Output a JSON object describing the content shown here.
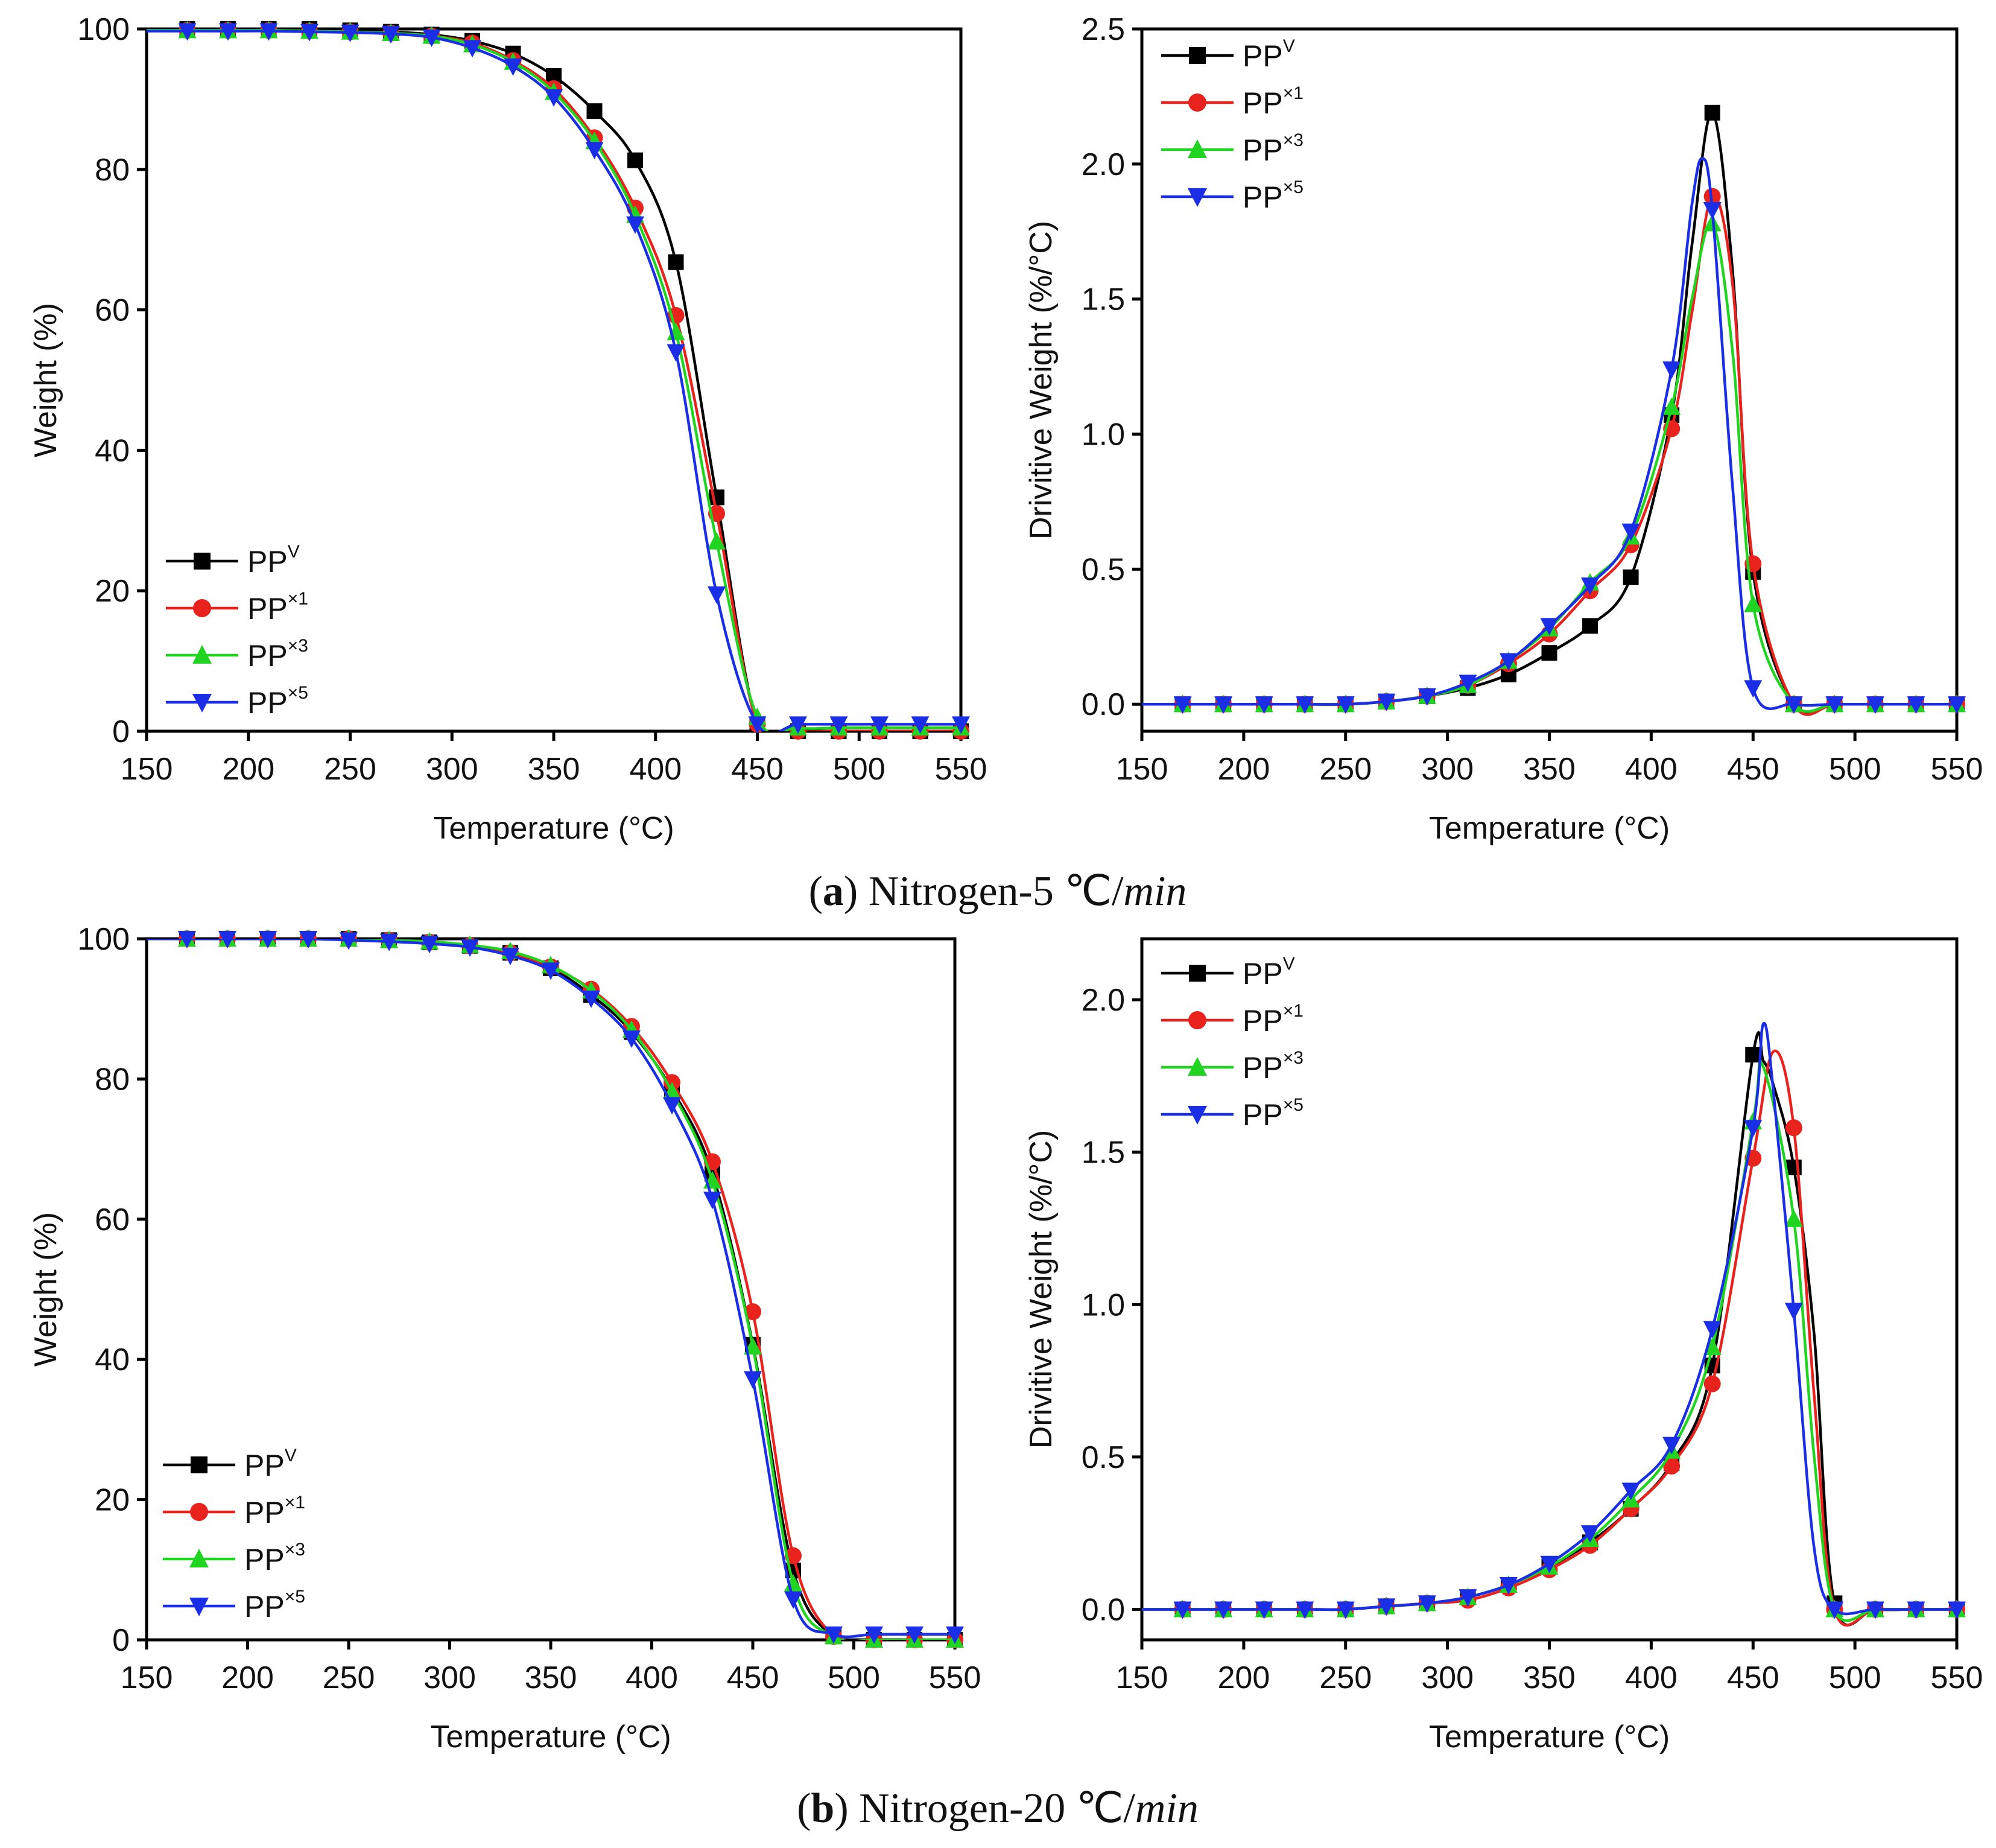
{
  "figure": {
    "captions": [
      {
        "label": "a",
        "text": " Nitrogen-5 ",
        "unit": "℃/",
        "rate": "min"
      },
      {
        "label": "b",
        "text": " Nitrogen-20 ",
        "unit": "℃/",
        "rate": "min"
      }
    ]
  },
  "chart_data": [
    {
      "id": "a-tga",
      "type": "line",
      "xlabel": "Temperature (°C)",
      "ylabel": "Weight (%)",
      "xlim": [
        150,
        550
      ],
      "ylim": [
        0,
        100
      ],
      "xticks": [
        "150",
        "200",
        "250",
        "300",
        "350",
        "400",
        "450",
        "500",
        "550"
      ],
      "yticks": [
        "0",
        "20",
        "40",
        "60",
        "80",
        "100"
      ],
      "legend": {
        "position": "bottom-left"
      },
      "series": [
        {
          "name": "PP",
          "sup": "V",
          "color": "#000000",
          "marker": "square",
          "x": [
            150,
            170,
            190,
            210,
            230,
            250,
            270,
            290,
            310,
            330,
            350,
            370,
            390,
            410,
            430,
            450,
            470,
            490,
            510,
            530,
            550
          ],
          "y": [
            100,
            100,
            100,
            100,
            100,
            99.8,
            99.6,
            99.2,
            98.3,
            96.5,
            93.3,
            88.3,
            81.3,
            66.8,
            33.3,
            1,
            0,
            0,
            0,
            0,
            0
          ]
        },
        {
          "name": "PP",
          "sup": "×1",
          "color": "#e8221c",
          "marker": "circle",
          "x": [
            150,
            170,
            190,
            210,
            230,
            250,
            270,
            290,
            310,
            330,
            350,
            370,
            390,
            410,
            430,
            450,
            470,
            490,
            510,
            530,
            550
          ],
          "y": [
            99.8,
            99.8,
            99.8,
            99.8,
            99.7,
            99.6,
            99.4,
            99.0,
            98.0,
            95.5,
            91.5,
            84.5,
            74.5,
            59.2,
            31.0,
            1,
            0,
            0,
            0,
            0,
            0
          ]
        },
        {
          "name": "PP",
          "sup": "×3",
          "color": "#22d422",
          "marker": "triangle-up",
          "x": [
            150,
            170,
            190,
            210,
            230,
            250,
            270,
            290,
            310,
            330,
            350,
            370,
            390,
            410,
            430,
            450,
            470,
            490,
            510,
            530,
            550
          ],
          "y": [
            99.8,
            99.8,
            99.8,
            99.8,
            99.7,
            99.6,
            99.4,
            99.0,
            97.8,
            95.3,
            91.0,
            84.0,
            73.5,
            56.8,
            27.0,
            2,
            0.5,
            0.5,
            0.5,
            0.5,
            0.5
          ]
        },
        {
          "name": "PP",
          "sup": "×5",
          "color": "#1a2ee6",
          "marker": "triangle-down",
          "x": [
            150,
            170,
            190,
            210,
            230,
            250,
            270,
            290,
            310,
            330,
            350,
            370,
            390,
            410,
            430,
            450,
            470,
            490,
            510,
            530,
            550
          ],
          "y": [
            99.7,
            99.7,
            99.7,
            99.7,
            99.6,
            99.5,
            99.3,
            98.8,
            97.3,
            94.7,
            90.3,
            82.8,
            72.2,
            54.0,
            19.5,
            1,
            1,
            1,
            1,
            1,
            1
          ]
        }
      ]
    },
    {
      "id": "a-dtg",
      "type": "line",
      "xlabel": "Temperature (°C)",
      "ylabel": "Drivitive Weight (%/°C)",
      "xlim": [
        150,
        550
      ],
      "ylim": [
        -0.1,
        2.5
      ],
      "xticks": [
        "150",
        "200",
        "250",
        "300",
        "350",
        "400",
        "450",
        "500",
        "550"
      ],
      "yticks": [
        "0.0",
        "0.5",
        "1.0",
        "1.5",
        "2.0",
        "2.5"
      ],
      "legend": {
        "position": "top-left"
      },
      "series": [
        {
          "name": "PP",
          "sup": "V",
          "color": "#000000",
          "marker": "square",
          "x": [
            150,
            170,
            190,
            210,
            230,
            250,
            270,
            290,
            310,
            330,
            350,
            370,
            390,
            410,
            420,
            430,
            440,
            450,
            470,
            490,
            510,
            530,
            550
          ],
          "y": [
            0,
            0,
            0,
            0,
            0,
            0,
            0.01,
            0.03,
            0.06,
            0.11,
            0.19,
            0.29,
            0.47,
            1.07,
            1.7,
            2.19,
            1.6,
            0.49,
            0,
            0,
            0,
            0,
            0
          ]
        },
        {
          "name": "PP",
          "sup": "×1",
          "color": "#e8221c",
          "marker": "circle",
          "x": [
            150,
            170,
            190,
            210,
            230,
            250,
            270,
            290,
            310,
            330,
            350,
            370,
            390,
            410,
            420,
            430,
            440,
            450,
            470,
            490,
            510,
            530,
            550
          ],
          "y": [
            0,
            0,
            0,
            0,
            0,
            0,
            0.01,
            0.03,
            0.07,
            0.15,
            0.26,
            0.42,
            0.59,
            1.02,
            1.45,
            1.88,
            1.55,
            0.52,
            0,
            0,
            0,
            0,
            0
          ]
        },
        {
          "name": "PP",
          "sup": "×3",
          "color": "#22d422",
          "marker": "triangle-up",
          "x": [
            150,
            170,
            190,
            210,
            230,
            250,
            270,
            290,
            310,
            330,
            350,
            370,
            390,
            410,
            420,
            430,
            440,
            450,
            470,
            490,
            510,
            530,
            550
          ],
          "y": [
            0,
            0,
            0,
            0,
            0,
            0,
            0.01,
            0.03,
            0.07,
            0.16,
            0.28,
            0.45,
            0.62,
            1.1,
            1.5,
            1.78,
            1.3,
            0.37,
            0,
            0,
            0,
            0,
            0
          ]
        },
        {
          "name": "PP",
          "sup": "×5",
          "color": "#1a2ee6",
          "marker": "triangle-down",
          "x": [
            150,
            170,
            190,
            210,
            230,
            250,
            270,
            290,
            310,
            330,
            350,
            370,
            390,
            410,
            420,
            425,
            430,
            440,
            450,
            470,
            490,
            510,
            530,
            550
          ],
          "y": [
            0,
            0,
            0,
            0,
            0,
            0,
            0.01,
            0.03,
            0.08,
            0.16,
            0.29,
            0.44,
            0.64,
            1.24,
            1.85,
            2.02,
            1.83,
            0.8,
            0.06,
            0,
            0,
            0,
            0,
            0
          ]
        }
      ]
    },
    {
      "id": "b-tga",
      "type": "line",
      "xlabel": "Temperature (°C)",
      "ylabel": "Weight (%)",
      "xlim": [
        150,
        550
      ],
      "ylim": [
        0,
        100
      ],
      "xticks": [
        "150",
        "200",
        "250",
        "300",
        "350",
        "400",
        "450",
        "500",
        "550"
      ],
      "yticks": [
        "0",
        "20",
        "40",
        "60",
        "80",
        "100"
      ],
      "legend": {
        "position": "bottom-left"
      },
      "series": [
        {
          "name": "PP",
          "sup": "V",
          "color": "#000000",
          "marker": "square",
          "x": [
            150,
            170,
            190,
            210,
            230,
            250,
            270,
            290,
            310,
            330,
            350,
            370,
            390,
            410,
            430,
            450,
            470,
            490,
            510,
            530,
            550
          ],
          "y": [
            100,
            100,
            100,
            100,
            100,
            100,
            99.8,
            99.5,
            99,
            98,
            95.8,
            92,
            86.7,
            78.5,
            66.5,
            42.1,
            9.9,
            0.5,
            0,
            0,
            0
          ]
        },
        {
          "name": "PP",
          "sup": "×1",
          "color": "#e8221c",
          "marker": "circle",
          "x": [
            150,
            170,
            190,
            210,
            230,
            250,
            270,
            290,
            310,
            330,
            350,
            370,
            390,
            410,
            430,
            450,
            470,
            490,
            510,
            530,
            550
          ],
          "y": [
            100,
            100,
            100,
            100,
            100,
            100,
            99.8,
            99.5,
            99,
            98,
            96,
            92.8,
            87.5,
            79.5,
            68.2,
            46.8,
            12,
            0.5,
            0,
            0,
            0
          ]
        },
        {
          "name": "PP",
          "sup": "×3",
          "color": "#22d422",
          "marker": "triangle-up",
          "x": [
            150,
            170,
            190,
            210,
            230,
            250,
            270,
            290,
            310,
            330,
            350,
            370,
            390,
            410,
            430,
            450,
            470,
            490,
            510,
            530,
            550
          ],
          "y": [
            100,
            100,
            100,
            100,
            100,
            100,
            99.8,
            99.6,
            99.1,
            98.2,
            96.2,
            92.6,
            87,
            78.2,
            65.5,
            41.8,
            8,
            0.5,
            0,
            0,
            0
          ]
        },
        {
          "name": "PP",
          "sup": "×5",
          "color": "#1a2ee6",
          "marker": "triangle-down",
          "x": [
            150,
            170,
            190,
            210,
            230,
            250,
            270,
            290,
            310,
            330,
            350,
            370,
            390,
            410,
            430,
            450,
            470,
            490,
            510,
            530,
            550
          ],
          "y": [
            100,
            100,
            100,
            100,
            100,
            99.8,
            99.6,
            99.3,
            98.8,
            97.6,
            95.5,
            91.5,
            85.8,
            76.3,
            62.8,
            37.2,
            5.8,
            0.8,
            0.8,
            0.8,
            0.8
          ]
        }
      ]
    },
    {
      "id": "b-dtg",
      "type": "line",
      "xlabel": "Temperature (°C)",
      "ylabel": "Drivitive Weight (%/°C)",
      "xlim": [
        150,
        550
      ],
      "ylim": [
        -0.1,
        2.2
      ],
      "xticks": [
        "150",
        "200",
        "250",
        "300",
        "350",
        "400",
        "450",
        "500",
        "550"
      ],
      "yticks": [
        "0.0",
        "0.5",
        "1.0",
        "1.5",
        "2.0"
      ],
      "legend": {
        "position": "top-left"
      },
      "series": [
        {
          "name": "PP",
          "sup": "V",
          "color": "#000000",
          "marker": "square",
          "x": [
            150,
            170,
            190,
            210,
            230,
            250,
            270,
            290,
            310,
            330,
            350,
            370,
            390,
            410,
            430,
            450,
            455,
            460,
            470,
            480,
            490,
            510,
            530,
            550
          ],
          "y": [
            0,
            0,
            0,
            0,
            0,
            0,
            0.01,
            0.02,
            0.04,
            0.08,
            0.14,
            0.22,
            0.33,
            0.48,
            0.8,
            1.82,
            1.8,
            1.72,
            1.45,
            0.9,
            0.02,
            0,
            0,
            0
          ]
        },
        {
          "name": "PP",
          "sup": "×1",
          "color": "#e8221c",
          "marker": "circle",
          "x": [
            150,
            170,
            190,
            210,
            230,
            250,
            270,
            290,
            310,
            330,
            350,
            370,
            390,
            410,
            430,
            450,
            460,
            470,
            480,
            490,
            510,
            530,
            550
          ],
          "y": [
            0,
            0,
            0,
            0,
            0,
            0,
            0.01,
            0.02,
            0.03,
            0.07,
            0.13,
            0.21,
            0.33,
            0.47,
            0.74,
            1.48,
            1.83,
            1.58,
            0.7,
            0,
            0,
            0,
            0
          ]
        },
        {
          "name": "PP",
          "sup": "×3",
          "color": "#22d422",
          "marker": "triangle-up",
          "x": [
            150,
            170,
            190,
            210,
            230,
            250,
            270,
            290,
            310,
            330,
            350,
            370,
            390,
            410,
            430,
            450,
            455,
            470,
            480,
            490,
            510,
            530,
            550
          ],
          "y": [
            0,
            0,
            0,
            0,
            0,
            0,
            0.01,
            0.02,
            0.04,
            0.08,
            0.14,
            0.23,
            0.36,
            0.52,
            0.86,
            1.6,
            1.78,
            1.28,
            0.5,
            0,
            0,
            0,
            0
          ]
        },
        {
          "name": "PP",
          "sup": "×5",
          "color": "#1a2ee6",
          "marker": "triangle-down",
          "x": [
            150,
            170,
            190,
            210,
            230,
            250,
            270,
            290,
            310,
            330,
            350,
            370,
            390,
            410,
            430,
            450,
            455,
            460,
            470,
            480,
            490,
            510,
            530,
            550
          ],
          "y": [
            0,
            0,
            0,
            0,
            0,
            0,
            0.01,
            0.02,
            0.04,
            0.08,
            0.15,
            0.25,
            0.39,
            0.54,
            0.92,
            1.58,
            1.92,
            1.7,
            0.98,
            0.2,
            0,
            0,
            0,
            0
          ]
        }
      ]
    }
  ]
}
